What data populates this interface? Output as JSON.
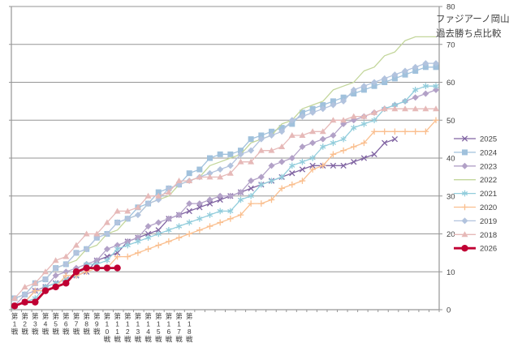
{
  "title": {
    "line1": "ファジアーノ岡山",
    "line2": "過去勝ち点比較"
  },
  "chart_data": {
    "type": "line",
    "title_lines": [
      "ファジアーノ岡山",
      "過去勝ち点比較"
    ],
    "xlabel": "",
    "ylabel": "",
    "ylim": [
      0,
      80
    ],
    "y_tick_step": 10,
    "y_tick_labels": [
      "0",
      "10",
      "20",
      "30",
      "40",
      "50",
      "60",
      "70",
      "80"
    ],
    "y_axis_side": "right",
    "x_total_categories": 42,
    "x_tick_labels": [
      "第1戦",
      "第2戦",
      "第3戦",
      "第4戦",
      "第5戦",
      "第6戦",
      "第7戦",
      "第8戦",
      "第9戦",
      "第10戦",
      "第11戦",
      "第12戦",
      "第13戦",
      "第14戦",
      "第15戦",
      "第16戦",
      "第17戦",
      "第18戦"
    ],
    "grid": true,
    "legend_position": "right",
    "axis_color": "#969696",
    "text_color": "#404040",
    "series": [
      {
        "name": "2025",
        "color": "#8064A2",
        "marker": "x",
        "line_width": 1.3,
        "values": [
          1,
          2,
          5,
          6,
          7,
          8,
          9,
          10,
          13,
          14,
          15,
          18,
          19,
          20,
          21,
          24,
          25,
          26,
          27,
          28,
          29,
          30,
          31,
          32,
          33,
          34,
          35,
          36,
          37,
          38,
          38,
          38,
          38,
          39,
          40,
          41,
          44,
          45
        ]
      },
      {
        "name": "2024",
        "color": "#A0C1DC",
        "marker": "square",
        "line_width": 1.3,
        "values": [
          3,
          4,
          7,
          8,
          11,
          12,
          15,
          16,
          19,
          20,
          23,
          24,
          27,
          28,
          31,
          32,
          33,
          36,
          37,
          40,
          41,
          41,
          42,
          45,
          46,
          47,
          48,
          49,
          52,
          53,
          54,
          55,
          56,
          57,
          58,
          59,
          60,
          61,
          62,
          63,
          64,
          64
        ]
      },
      {
        "name": "2023",
        "color": "#B2A1C7",
        "marker": "diamond",
        "line_width": 1.3,
        "values": [
          1,
          4,
          5,
          6,
          9,
          10,
          11,
          12,
          13,
          16,
          17,
          18,
          19,
          22,
          23,
          24,
          25,
          28,
          28,
          29,
          30,
          30,
          31,
          34,
          35,
          38,
          39,
          40,
          43,
          44,
          45,
          46,
          49,
          50,
          51,
          52,
          53,
          54,
          55,
          56,
          57,
          58
        ]
      },
      {
        "name": "2022",
        "color": "#C3D69B",
        "marker": "none",
        "line_width": 1.3,
        "values": [
          3,
          4,
          7,
          8,
          11,
          12,
          13,
          16,
          17,
          20,
          21,
          24,
          25,
          28,
          29,
          30,
          33,
          34,
          35,
          38,
          39,
          40,
          41,
          44,
          45,
          46,
          49,
          50,
          53,
          54,
          55,
          58,
          59,
          60,
          63,
          64,
          67,
          68,
          71,
          72,
          72,
          72
        ]
      },
      {
        "name": "2021",
        "color": "#92CDDC",
        "marker": "asterisk",
        "line_width": 1.3,
        "values": [
          1,
          2,
          3,
          6,
          7,
          8,
          9,
          12,
          12,
          13,
          16,
          17,
          18,
          19,
          20,
          21,
          22,
          23,
          24,
          25,
          26,
          26,
          29,
          30,
          33,
          34,
          35,
          38,
          39,
          40,
          43,
          44,
          45,
          48,
          49,
          50,
          53,
          54,
          55,
          58,
          59,
          59
        ]
      },
      {
        "name": "2020",
        "color": "#FABF8F",
        "marker": "plus",
        "line_width": 1.3,
        "values": [
          1,
          2,
          5,
          5,
          6,
          9,
          9,
          10,
          11,
          11,
          14,
          14,
          15,
          16,
          17,
          18,
          19,
          20,
          21,
          22,
          23,
          24,
          25,
          28,
          28,
          29,
          32,
          33,
          34,
          37,
          38,
          41,
          42,
          43,
          44,
          47,
          47,
          47,
          47,
          47,
          47,
          50
        ]
      },
      {
        "name": "2019",
        "color": "#B2C3DE",
        "marker": "diamond",
        "line_width": 1.3,
        "values": [
          3,
          4,
          7,
          8,
          11,
          12,
          15,
          16,
          19,
          20,
          23,
          24,
          25,
          28,
          29,
          32,
          33,
          34,
          35,
          36,
          37,
          38,
          41,
          42,
          45,
          46,
          47,
          50,
          51,
          52,
          53,
          54,
          55,
          58,
          59,
          60,
          61,
          62,
          63,
          64,
          65,
          65
        ]
      },
      {
        "name": "2018",
        "color": "#E6B9B8",
        "marker": "triangle",
        "line_width": 1.3,
        "values": [
          3,
          6,
          7,
          10,
          13,
          14,
          17,
          20,
          20,
          23,
          26,
          26,
          27,
          30,
          30,
          31,
          34,
          34,
          35,
          35,
          35,
          36,
          39,
          39,
          42,
          42,
          43,
          46,
          46,
          47,
          47,
          50,
          50,
          51,
          51,
          52,
          53,
          53,
          53,
          53,
          53,
          53
        ]
      },
      {
        "name": "2026",
        "color": "#C00033",
        "marker": "circle",
        "line_width": 2.8,
        "values": [
          1,
          2,
          2,
          5,
          6,
          7,
          10,
          11,
          11,
          11,
          11
        ]
      }
    ]
  }
}
